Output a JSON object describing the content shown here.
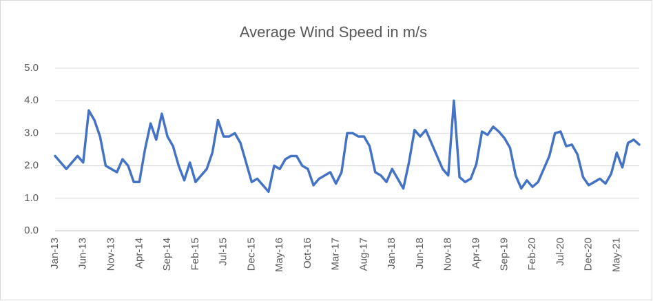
{
  "chart_data": {
    "type": "line",
    "title": "Average Wind Speed in m/s",
    "categories": [
      "Jan-13",
      null,
      null,
      null,
      null,
      "Jun-13",
      null,
      null,
      null,
      null,
      "Nov-13",
      null,
      null,
      null,
      null,
      "Apr-14",
      null,
      null,
      null,
      null,
      "Sep-14",
      null,
      null,
      null,
      null,
      "Feb-15",
      null,
      null,
      null,
      null,
      "Jul-15",
      null,
      null,
      null,
      null,
      "Dec-15",
      null,
      null,
      null,
      null,
      "May-16",
      null,
      null,
      null,
      null,
      "Oct-16",
      null,
      null,
      null,
      null,
      "Mar-17",
      null,
      null,
      null,
      null,
      "Aug-17",
      null,
      null,
      null,
      null,
      "Jan-18",
      null,
      null,
      null,
      null,
      "Jun-18",
      null,
      null,
      null,
      null,
      "Nov-18",
      null,
      null,
      null,
      null,
      "Apr-19",
      null,
      null,
      null,
      null,
      "Sep-19",
      null,
      null,
      null,
      null,
      "Feb-20",
      null,
      null,
      null,
      null,
      "Jul-20",
      null,
      null,
      null,
      null,
      "Dec-20",
      null,
      null,
      null,
      null,
      "May-21",
      null,
      null,
      null,
      null
    ],
    "series": [
      {
        "color": "#4472c4",
        "values": [
          2.3,
          2.1,
          1.9,
          2.1,
          2.3,
          2.1,
          3.7,
          3.4,
          2.9,
          2.0,
          1.9,
          1.8,
          2.2,
          2.0,
          1.5,
          1.5,
          2.5,
          3.3,
          2.8,
          3.6,
          2.9,
          2.6,
          2.0,
          1.55,
          2.1,
          1.5,
          1.7,
          1.9,
          2.4,
          3.4,
          2.9,
          2.9,
          3.0,
          2.7,
          2.1,
          1.5,
          1.6,
          1.4,
          1.2,
          2.0,
          1.9,
          2.2,
          2.3,
          2.3,
          2.0,
          1.9,
          1.4,
          1.6,
          1.7,
          1.8,
          1.45,
          1.8,
          3.0,
          3.0,
          2.9,
          2.9,
          2.6,
          1.8,
          1.7,
          1.5,
          1.9,
          1.6,
          1.3,
          2.1,
          3.1,
          2.9,
          3.1,
          2.7,
          2.3,
          1.9,
          1.7,
          4.0,
          1.65,
          1.5,
          1.6,
          2.05,
          3.05,
          2.95,
          3.2,
          3.05,
          2.85,
          2.55,
          1.7,
          1.3,
          1.55,
          1.35,
          1.5,
          1.9,
          2.3,
          3.0,
          3.05,
          2.6,
          2.65,
          2.35,
          1.65,
          1.4,
          1.5,
          1.6,
          1.45,
          1.75,
          2.4,
          1.95,
          2.7,
          2.8,
          2.65
        ]
      }
    ],
    "ylim": [
      0,
      5
    ],
    "yticks": [
      {
        "value": 0,
        "label": "0.0"
      },
      {
        "value": 1,
        "label": "1.0"
      },
      {
        "value": 2,
        "label": "2.0"
      },
      {
        "value": 3,
        "label": "3.0"
      },
      {
        "value": 4,
        "label": "4.0"
      },
      {
        "value": 5,
        "label": "5.0"
      }
    ],
    "grid": true
  }
}
